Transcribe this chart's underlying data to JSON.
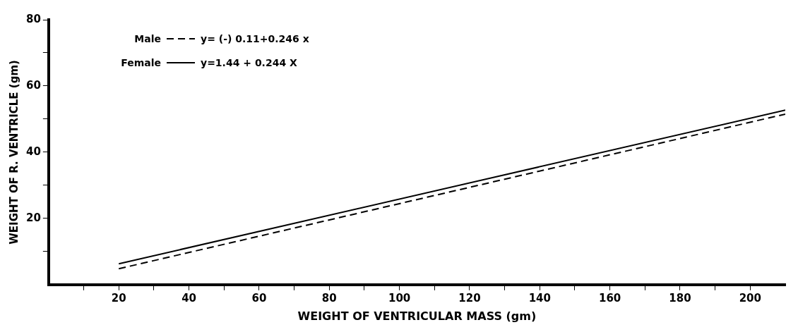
{
  "chart_data": {
    "type": "line",
    "xlabel": "WEIGHT OF VENTRICULAR MASS (gm)",
    "ylabel": "WEIGHT OF R. VENTRICLE (gm)",
    "xlim": [
      0,
      210
    ],
    "ylim": [
      0,
      80
    ],
    "xticks": [
      {
        "value": 10,
        "label": null
      },
      20,
      {
        "value": 30,
        "label": null
      },
      40,
      {
        "value": 50,
        "label": null
      },
      60,
      {
        "value": 70,
        "label": null
      },
      80,
      {
        "value": 90,
        "label": null
      },
      100,
      {
        "value": 110,
        "label": null
      },
      120,
      {
        "value": 130,
        "label": null
      },
      140,
      {
        "value": 150,
        "label": null
      },
      160,
      {
        "value": 170,
        "label": null
      },
      180,
      {
        "value": 190,
        "label": null
      },
      200
    ],
    "yticks": [
      {
        "value": 10,
        "label": null
      },
      20,
      {
        "value": 30,
        "label": null
      },
      40,
      {
        "value": 50,
        "label": null
      },
      60,
      {
        "value": 70,
        "label": null
      },
      80
    ],
    "x": [
      20,
      210
    ],
    "series": [
      {
        "name": "Male",
        "color": "#000000",
        "values": [
          4.8,
          51.5
        ],
        "line_style": "dashed"
      },
      {
        "name": "Female",
        "color": "#000000",
        "values": [
          6.3,
          52.7
        ],
        "line_style": "solid"
      }
    ],
    "annotations": [
      "y= (-) 0.11+0.246 x",
      "y=1.44 + 0.244 X"
    ],
    "legend": "top left",
    "grid": false,
    "marker": "none"
  }
}
